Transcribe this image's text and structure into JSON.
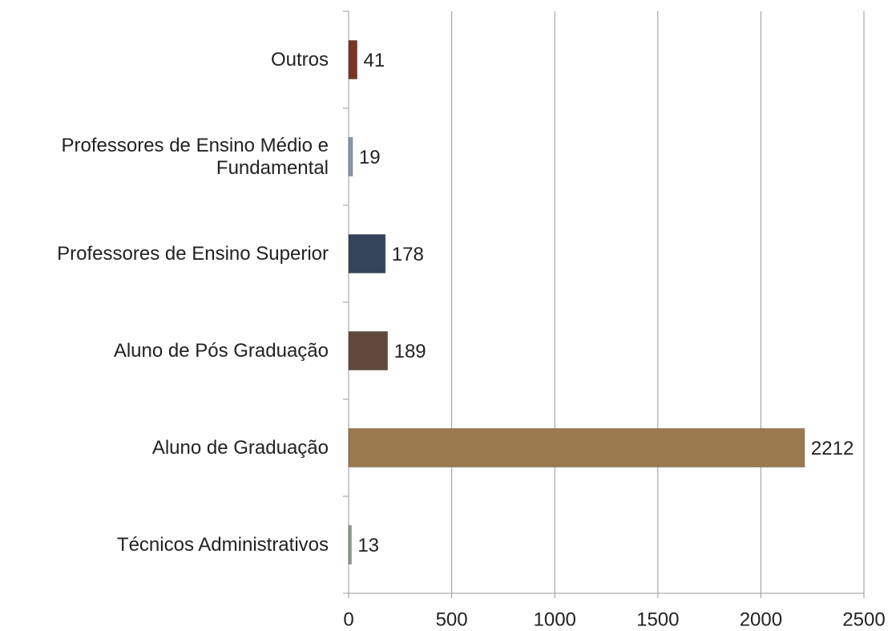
{
  "chart_data": {
    "type": "bar",
    "orientation": "horizontal",
    "categories": [
      "Outros",
      "Professores de Ensino Médio e\nFundamental",
      "Professores de Ensino Superior",
      "Aluno de Pós Graduação",
      "Aluno de Graduação",
      "Técnicos Administrativos"
    ],
    "values": [
      41,
      19,
      178,
      189,
      2212,
      13
    ],
    "colors": [
      "#7a3526",
      "#8797ab",
      "#34445a",
      "#5f4a3d",
      "#9a7a4c",
      "#899a8c"
    ],
    "xlim": [
      0,
      2500
    ],
    "xticks": [
      0,
      500,
      1000,
      1500,
      2000,
      2500
    ],
    "grid": true
  }
}
